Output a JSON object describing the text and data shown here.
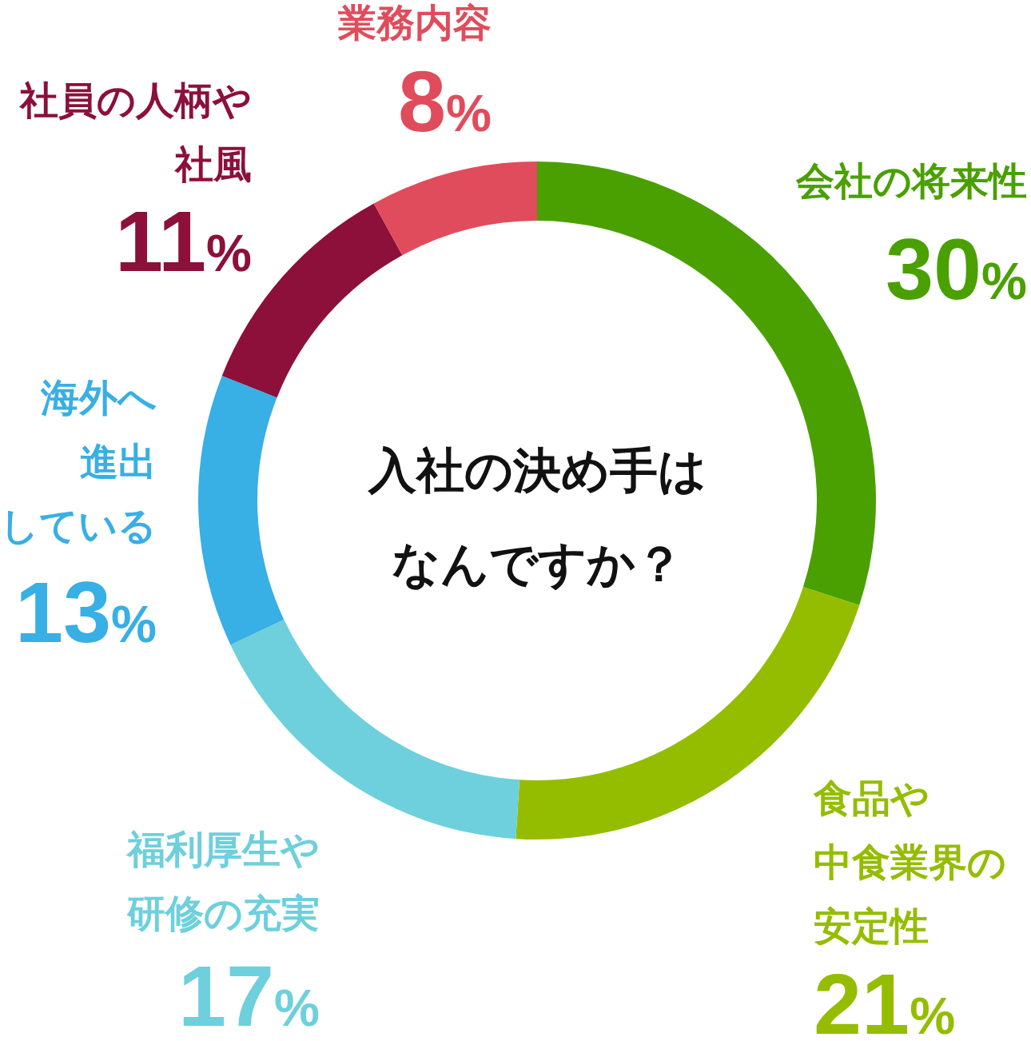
{
  "chart_data": {
    "type": "donut",
    "title": "入社の決め手はなんですか？",
    "categories": [
      "会社の将来性",
      "食品や中食業界の安定性",
      "福利厚生や研修の充実",
      "海外へ進出している",
      "社員の人柄や社風",
      "業務内容"
    ],
    "values": [
      30,
      21,
      17,
      13,
      11,
      8
    ],
    "colors": [
      "#4aa000",
      "#95bd00",
      "#6dd0dc",
      "#38afe5",
      "#8c1039",
      "#e04c5c"
    ],
    "value_labels": [
      "30%",
      "21%",
      "17%",
      "13%",
      "11%",
      "8%"
    ]
  }
}
